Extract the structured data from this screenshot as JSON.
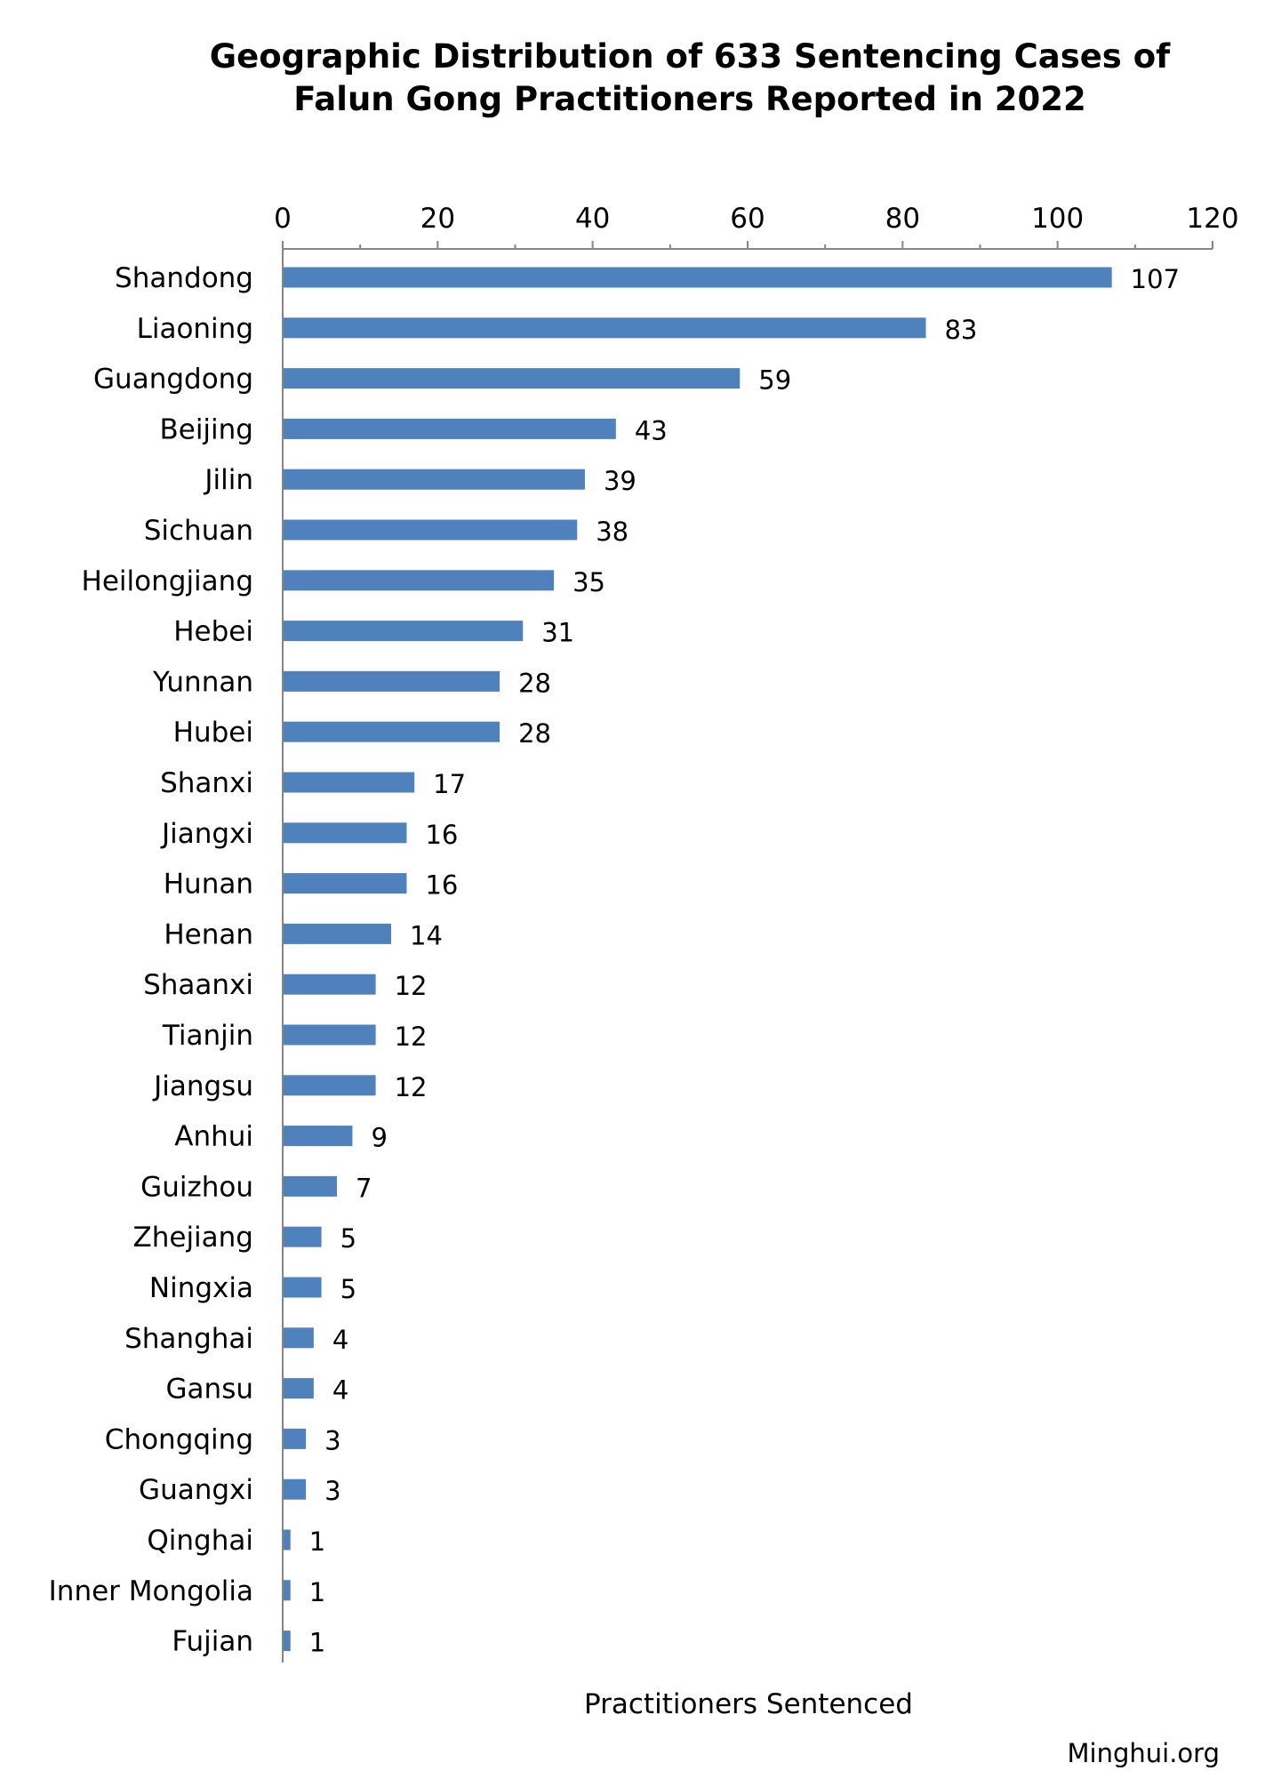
{
  "chart_data": {
    "type": "bar",
    "orientation": "horizontal",
    "title_lines": [
      "Geographic Distribution of 633 Sentencing Cases of",
      "Falun Gong Practitioners Reported in 2022"
    ],
    "xlabel": "Practitioners Sentenced",
    "ylabel": "",
    "xlim": [
      0,
      120
    ],
    "ticks": [
      0,
      20,
      40,
      60,
      80,
      100,
      120
    ],
    "x_axis_position": "top",
    "grid": false,
    "legend": "none",
    "bar_color": "#4f81bd",
    "categories": [
      "Shandong",
      "Liaoning",
      "Guangdong",
      "Beijing",
      "Jilin",
      "Sichuan",
      "Heilongjiang",
      "Hebei",
      "Yunnan",
      "Hubei",
      "Shanxi",
      "Jiangxi",
      "Hunan",
      "Henan",
      "Shaanxi",
      "Tianjin",
      "Jiangsu",
      "Anhui",
      "Guizhou",
      "Zhejiang",
      "Ningxia",
      "Shanghai",
      "Gansu",
      "Chongqing",
      "Guangxi",
      "Qinghai",
      "Inner Mongolia",
      "Fujian"
    ],
    "values": [
      107,
      83,
      59,
      43,
      39,
      38,
      35,
      31,
      28,
      28,
      17,
      16,
      16,
      14,
      12,
      12,
      12,
      9,
      7,
      5,
      5,
      4,
      4,
      3,
      3,
      1,
      1,
      1
    ]
  },
  "watermark": "Minghui.org"
}
